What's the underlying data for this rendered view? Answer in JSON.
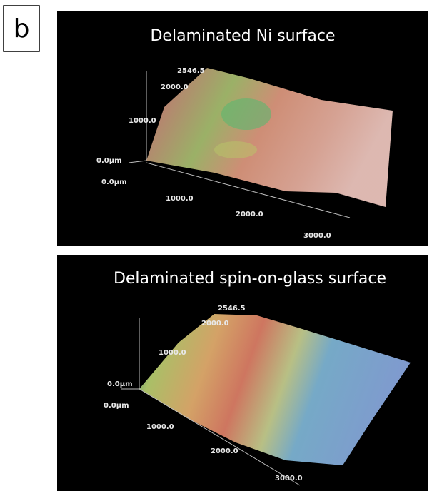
{
  "panel_label": "b",
  "panels": [
    {
      "title": "Delaminated Ni surface",
      "labels": [
        "2546.5",
        "2000.0",
        "1000.0",
        "0.0µm",
        "0.0µm",
        "1000.0",
        "2000.0",
        "3000.0"
      ]
    },
    {
      "title": "Delaminated spin-on-glass surface",
      "labels": [
        "2546.5",
        "2000.0",
        "1000.0",
        "0.0µm",
        "0.0µm",
        "1000.0",
        "2000.0",
        "3000.0"
      ]
    }
  ]
}
